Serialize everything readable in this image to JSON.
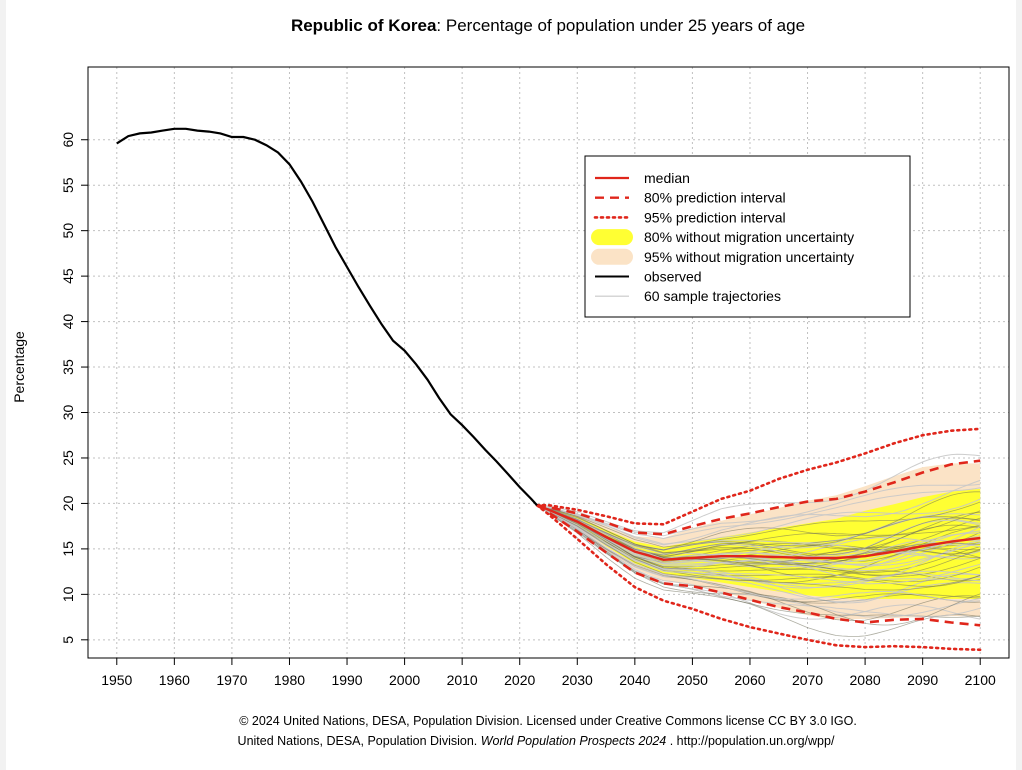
{
  "chart_data": {
    "type": "line",
    "title_bold": "Republic of Korea",
    "title_rest": ": Percentage of population under 25 years of age",
    "ylabel": "Percentage",
    "xlabel": "",
    "xlim": [
      1945,
      2105
    ],
    "ylim": [
      3,
      68
    ],
    "x_ticks": [
      1950,
      1960,
      1970,
      1980,
      1990,
      2000,
      2010,
      2020,
      2030,
      2040,
      2050,
      2060,
      2070,
      2080,
      2090,
      2100
    ],
    "y_ticks": [
      5,
      10,
      15,
      20,
      25,
      30,
      35,
      40,
      45,
      50,
      55,
      60
    ],
    "grid": true,
    "legend_position": "top-right",
    "legend": [
      {
        "key": "median",
        "label": "median"
      },
      {
        "key": "pi80",
        "label": "80% prediction interval"
      },
      {
        "key": "pi95",
        "label": "95% prediction interval"
      },
      {
        "key": "nomig80",
        "label": "80% without migration uncertainty"
      },
      {
        "key": "nomig95",
        "label": "95% without migration uncertainty"
      },
      {
        "key": "observed",
        "label": "observed"
      },
      {
        "key": "traj",
        "label": "60 sample trajectories"
      }
    ],
    "colors": {
      "median": "#e0261b",
      "pi": "#e0261b",
      "observed": "#000000",
      "band80": "#ffff33",
      "band95": "#fbe3c6",
      "trajectory": "#c8c8c8",
      "grid": "#c0c0c0"
    },
    "observed": {
      "x": [
        1950,
        1952,
        1954,
        1956,
        1958,
        1960,
        1962,
        1964,
        1966,
        1968,
        1970,
        1972,
        1974,
        1976,
        1978,
        1980,
        1982,
        1984,
        1986,
        1988,
        1990,
        1992,
        1994,
        1996,
        1998,
        2000,
        2002,
        2004,
        2006,
        2008,
        2010,
        2012,
        2014,
        2016,
        2018,
        2020,
        2022,
        2023
      ],
      "y": [
        59.6,
        60.4,
        60.7,
        60.8,
        61.0,
        61.2,
        61.2,
        61.0,
        60.9,
        60.7,
        60.3,
        60.3,
        60.0,
        59.4,
        58.6,
        57.3,
        55.4,
        53.2,
        50.7,
        48.2,
        46.0,
        43.8,
        41.7,
        39.7,
        37.9,
        36.8,
        35.3,
        33.6,
        31.6,
        29.8,
        28.6,
        27.3,
        25.9,
        24.6,
        23.2,
        21.8,
        20.5,
        19.8
      ]
    },
    "projection_x": [
      2023,
      2025,
      2030,
      2035,
      2040,
      2045,
      2050,
      2055,
      2060,
      2065,
      2070,
      2075,
      2080,
      2085,
      2090,
      2095,
      2100
    ],
    "median": [
      19.8,
      19.3,
      18.0,
      16.3,
      14.7,
      13.8,
      14.0,
      14.2,
      14.2,
      14.1,
      14.0,
      14.0,
      14.2,
      14.7,
      15.3,
      15.8,
      16.2
    ],
    "pi80_upper": [
      19.8,
      19.6,
      18.9,
      17.9,
      16.8,
      16.6,
      17.5,
      18.3,
      18.9,
      19.6,
      20.2,
      20.5,
      21.3,
      22.3,
      23.4,
      24.3,
      24.7
    ],
    "pi80_lower": [
      19.8,
      19.0,
      16.9,
      14.6,
      12.4,
      11.2,
      10.9,
      10.2,
      9.4,
      8.6,
      8.0,
      7.3,
      6.9,
      7.2,
      7.3,
      6.9,
      6.6
    ],
    "pi95_upper": [
      19.8,
      19.8,
      19.3,
      18.6,
      17.8,
      17.7,
      19.1,
      20.5,
      21.4,
      22.7,
      23.7,
      24.5,
      25.5,
      26.6,
      27.5,
      28.0,
      28.2
    ],
    "pi95_lower": [
      19.8,
      18.8,
      16.1,
      13.3,
      10.8,
      9.3,
      8.4,
      7.3,
      6.4,
      5.7,
      5.0,
      4.4,
      4.2,
      4.3,
      4.2,
      4.0,
      3.9
    ],
    "band80_upper": [
      19.8,
      19.5,
      18.5,
      17.1,
      15.8,
      15.2,
      15.8,
      16.3,
      16.8,
      17.3,
      17.8,
      18.3,
      19.2,
      19.9,
      20.7,
      21.3,
      21.6
    ],
    "band80_lower": [
      19.8,
      19.1,
      17.5,
      15.3,
      13.4,
      12.3,
      11.8,
      11.3,
      10.8,
      10.3,
      9.9,
      9.6,
      9.5,
      9.5,
      9.5,
      9.5,
      9.5
    ],
    "band95_upper": [
      19.8,
      19.6,
      18.8,
      17.5,
      16.4,
      16.2,
      17.3,
      18.1,
      18.8,
      19.5,
      20.3,
      20.9,
      21.9,
      23.0,
      24.0,
      24.4,
      24.4
    ],
    "band95_lower": [
      19.8,
      19.0,
      17.1,
      14.8,
      12.8,
      11.5,
      11.0,
      10.3,
      9.4,
      8.5,
      7.7,
      7.2,
      7.3,
      7.4,
      7.5,
      7.6,
      7.6
    ]
  },
  "credits": {
    "line1": "© 2024 United Nations, DESA, Population Division. Licensed under Creative Commons license CC BY 3.0 IGO.",
    "line2_a": "United Nations, DESA, Population Division. ",
    "line2_b": "World Population Prospects 2024",
    "line2_c": " . http://population.un.org/wpp/"
  }
}
